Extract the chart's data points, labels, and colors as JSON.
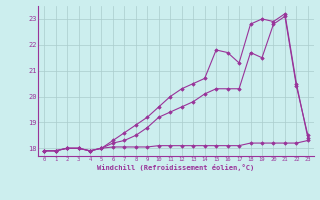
{
  "x": [
    0,
    1,
    2,
    3,
    4,
    5,
    6,
    7,
    8,
    9,
    10,
    11,
    12,
    13,
    14,
    15,
    16,
    17,
    18,
    19,
    20,
    21,
    22,
    23
  ],
  "line1": [
    17.9,
    17.9,
    18.0,
    18.0,
    17.9,
    18.0,
    18.05,
    18.05,
    18.05,
    18.05,
    18.1,
    18.1,
    18.1,
    18.1,
    18.1,
    18.1,
    18.1,
    18.1,
    18.2,
    18.2,
    18.2,
    18.2,
    18.2,
    18.3
  ],
  "line2": [
    17.9,
    17.9,
    18.0,
    18.0,
    17.9,
    18.0,
    18.2,
    18.3,
    18.5,
    18.8,
    19.2,
    19.4,
    19.6,
    19.8,
    20.1,
    20.3,
    20.3,
    20.3,
    21.7,
    21.5,
    22.8,
    23.1,
    20.4,
    18.5
  ],
  "line3": [
    17.9,
    17.9,
    18.0,
    18.0,
    17.9,
    18.0,
    18.3,
    18.6,
    18.9,
    19.2,
    19.6,
    20.0,
    20.3,
    20.5,
    20.7,
    21.8,
    21.7,
    21.3,
    22.8,
    23.0,
    22.9,
    23.2,
    20.5,
    18.4
  ],
  "xlim": [
    -0.5,
    23.5
  ],
  "ylim": [
    17.7,
    23.5
  ],
  "yticks": [
    18,
    19,
    20,
    21,
    22,
    23
  ],
  "xticks": [
    0,
    1,
    2,
    3,
    4,
    5,
    6,
    7,
    8,
    9,
    10,
    11,
    12,
    13,
    14,
    15,
    16,
    17,
    18,
    19,
    20,
    21,
    22,
    23
  ],
  "xlabel": "Windchill (Refroidissement éolien,°C)",
  "line_color": "#993399",
  "bg_color": "#cceeee",
  "grid_color": "#aacccc",
  "marker": "D",
  "marker_size": 1.8,
  "linewidth": 0.8
}
